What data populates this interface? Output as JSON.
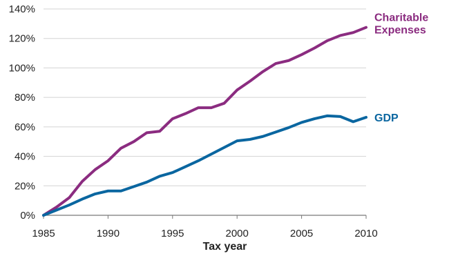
{
  "chart_data": {
    "type": "line",
    "title": "",
    "xlabel": "Tax year",
    "ylabel": "",
    "xlim": [
      1985,
      2010
    ],
    "ylim": [
      0,
      140
    ],
    "x_ticks": [
      "1985",
      "1990",
      "1995",
      "2000",
      "2005",
      "2010"
    ],
    "y_ticks": [
      "0%",
      "20%",
      "40%",
      "60%",
      "80%",
      "100%",
      "120%",
      "140%"
    ],
    "grid": "horizontal",
    "legend": "direct labels at line ends",
    "x": [
      1985,
      1986,
      1987,
      1988,
      1989,
      1990,
      1991,
      1992,
      1993,
      1994,
      1995,
      1996,
      1997,
      1998,
      1999,
      2000,
      2001,
      2002,
      2003,
      2004,
      2005,
      2006,
      2007,
      2008,
      2009,
      2010
    ],
    "series": [
      {
        "name": "Charitable Expenses",
        "label_lines": [
          "Charitable",
          "Expenses"
        ],
        "color": "#8b2c80",
        "values": [
          0,
          5.5,
          12,
          23,
          31,
          37,
          45.5,
          50,
          56,
          57,
          65.5,
          69,
          73,
          73,
          76,
          85,
          91,
          97.5,
          103,
          105,
          109,
          113.5,
          118.5,
          122,
          124,
          127.5
        ]
      },
      {
        "name": "GDP",
        "label_lines": [
          "GDP"
        ],
        "color": "#0a66a0",
        "values": [
          0,
          3.5,
          7,
          11,
          14.5,
          16.5,
          16.5,
          19.5,
          22.5,
          26.5,
          29,
          33,
          37,
          41.5,
          46,
          50.5,
          51.5,
          53.5,
          56.5,
          59.5,
          63,
          65.5,
          67.5,
          67,
          63.5,
          66.5
        ]
      }
    ]
  }
}
